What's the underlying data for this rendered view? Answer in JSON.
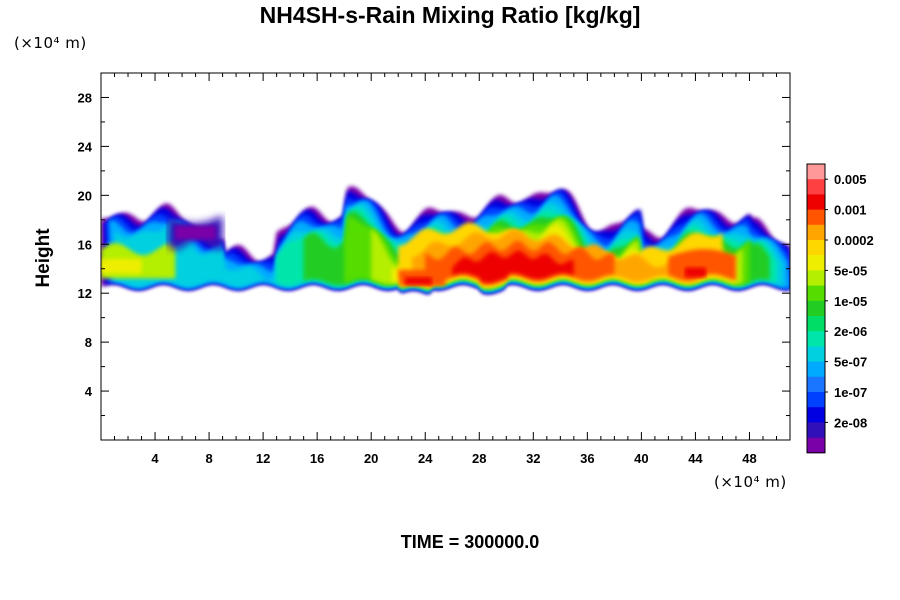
{
  "chart_data": {
    "type": "heatmap",
    "title": "NH4SH-s-Rain Mixing Ratio [kg/kg]",
    "ylabel": "Height",
    "y_unit": "(×10⁴ m)",
    "x_unit": "(×10⁴ m)",
    "x_ticks": [
      4,
      8,
      12,
      16,
      20,
      24,
      28,
      32,
      36,
      40,
      44,
      48
    ],
    "y_ticks": [
      4,
      8,
      12,
      16,
      20,
      24,
      28
    ],
    "xlim": [
      0,
      51
    ],
    "ylim": [
      0,
      30
    ],
    "grid": false,
    "legend_position": "right",
    "colorbar": {
      "labels": [
        "0.005",
        "0.001",
        "0.0002",
        "5e-05",
        "1e-05",
        "2e-06",
        "5e-07",
        "1e-07",
        "2e-08"
      ],
      "colors": [
        "#ff9999",
        "#ff4040",
        "#ee0000",
        "#ff5500",
        "#ffa500",
        "#ffd700",
        "#eeee00",
        "#b4ee00",
        "#55dd00",
        "#22cc22",
        "#00dd66",
        "#00e6aa",
        "#00d0e0",
        "#00aaff",
        "#1a75ff",
        "#0040ff",
        "#0000e0",
        "#3010b8",
        "#7a00a8"
      ]
    },
    "field": {
      "description_levels": "contour bands of mixing ratio",
      "cloud_base": 12.5,
      "cloud_top_range": [
        17,
        20.5
      ],
      "core_x_range": [
        22,
        46
      ],
      "core_peak_x": 30
    }
  },
  "footer": {
    "time_label": "TIME = 300000.0"
  }
}
